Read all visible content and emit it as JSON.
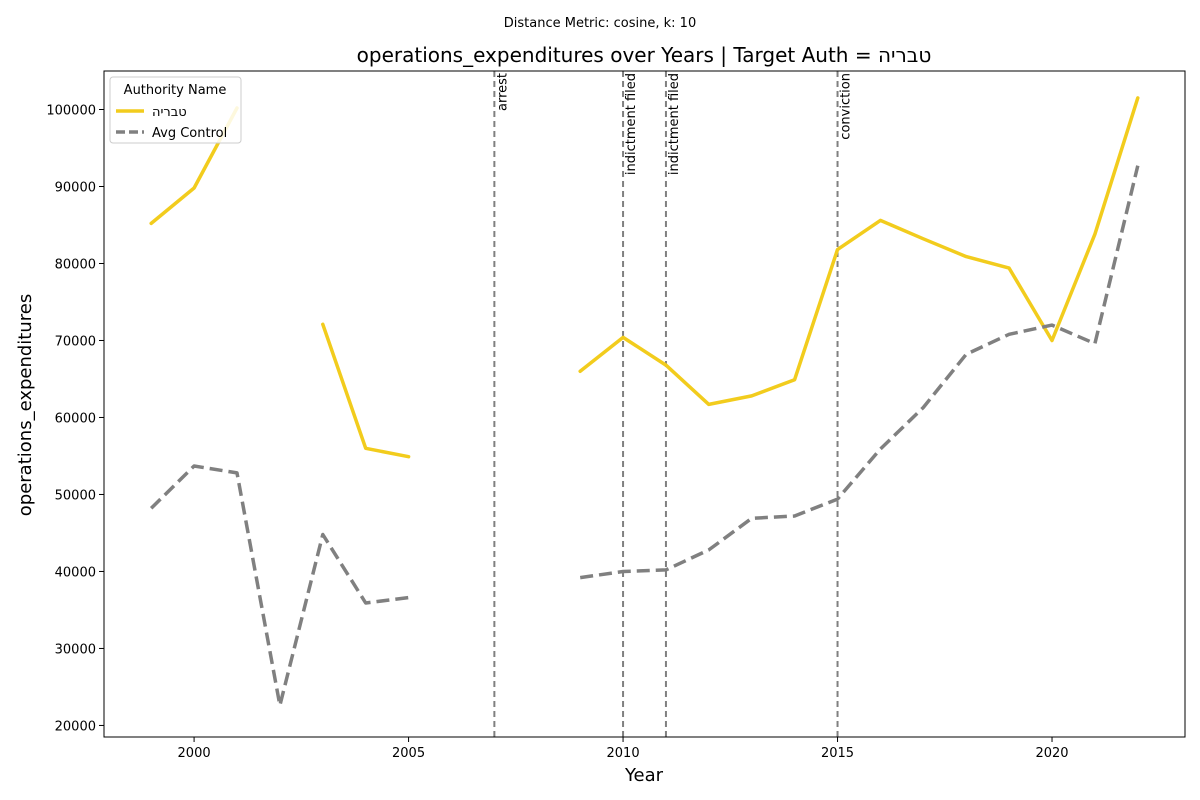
{
  "chart_data": {
    "type": "line",
    "suptitle": "Distance Metric: cosine, k: 10",
    "title": "operations_expenditures over Years | Target Auth = טבריה",
    "xlabel": "Year",
    "ylabel": "operations_expenditures",
    "xlim": [
      1997.9,
      2023.1
    ],
    "ylim": [
      18500,
      105000
    ],
    "xticks": [
      2000,
      2005,
      2010,
      2015,
      2020
    ],
    "yticks": [
      20000,
      30000,
      40000,
      50000,
      60000,
      70000,
      80000,
      90000,
      100000
    ],
    "grid": false,
    "legend": {
      "title": "Authority Name",
      "placement": "top-left"
    },
    "series": [
      {
        "name": "טבריה",
        "color": "#f2cc1d",
        "style": "solid",
        "x": [
          1999,
          2000,
          2001,
          2002,
          2003,
          2004,
          2005,
          2006,
          2007,
          2008,
          2009,
          2010,
          2011,
          2012,
          2013,
          2014,
          2015,
          2016,
          2017,
          2018,
          2019,
          2020,
          2021,
          2022
        ],
        "values": [
          85200,
          89800,
          100200,
          null,
          72100,
          56000,
          54900,
          null,
          null,
          null,
          66000,
          70400,
          66800,
          61700,
          62800,
          64900,
          81800,
          85600,
          83200,
          80900,
          79400,
          70000,
          83800,
          101500
        ]
      },
      {
        "name": "Avg Control",
        "color": "#808080",
        "style": "dashed",
        "x": [
          1999,
          2000,
          2001,
          2002,
          2003,
          2004,
          2005,
          2006,
          2007,
          2008,
          2009,
          2010,
          2011,
          2012,
          2013,
          2014,
          2015,
          2016,
          2017,
          2018,
          2019,
          2020,
          2021,
          2022
        ],
        "values": [
          48200,
          53700,
          52800,
          22600,
          44800,
          35900,
          36600,
          null,
          null,
          null,
          39200,
          40000,
          40200,
          42800,
          46900,
          47200,
          49400,
          55900,
          61300,
          68200,
          70800,
          72000,
          69600,
          92700
        ]
      }
    ],
    "events": [
      {
        "x": 2007,
        "label": "arrest"
      },
      {
        "x": 2010,
        "label": "indictment filed"
      },
      {
        "x": 2011,
        "label": "indictment filed"
      },
      {
        "x": 2015,
        "label": "conviction"
      }
    ]
  }
}
